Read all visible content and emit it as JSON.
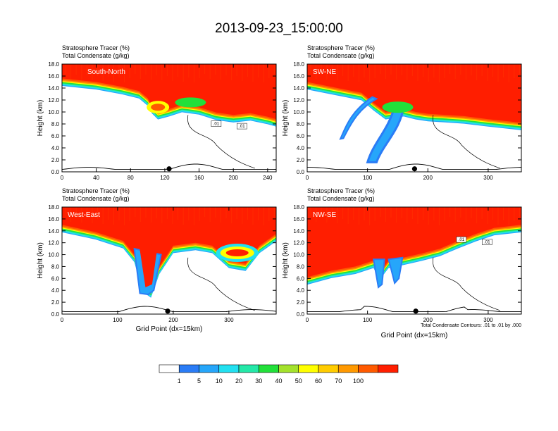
{
  "title": "2013-09-23_15:00:00",
  "chart_data": [
    {
      "type": "heatmap",
      "panel_label": "South-North",
      "field_labels": [
        "Stratosphere Tracer   (%)",
        "Total Condensate   (g/kg)"
      ],
      "ylabel": "Height (km)",
      "xlabel": "",
      "xlim": [
        0,
        250
      ],
      "ylim": [
        0,
        18
      ],
      "x_ticks": [
        0,
        40,
        80,
        120,
        160,
        200,
        240
      ],
      "y_ticks": [
        "0.0",
        "2.0",
        "4.0",
        "6.0",
        "8.0",
        "10.0",
        "12.0",
        "14.0",
        "16.0",
        "18.0"
      ],
      "tracer_boundary_km": [
        [
          0,
          15.6
        ],
        [
          40,
          15.0
        ],
        [
          70,
          14.2
        ],
        [
          90,
          13.5
        ],
        [
          100,
          12.3
        ],
        [
          105,
          11.0
        ],
        [
          112,
          10.0
        ],
        [
          125,
          10.5
        ],
        [
          140,
          11.2
        ],
        [
          160,
          10.8
        ],
        [
          180,
          9.9
        ],
        [
          200,
          9.5
        ],
        [
          220,
          9.8
        ],
        [
          240,
          9.2
        ],
        [
          250,
          8.8
        ]
      ],
      "dot_marker_x": 125,
      "contour_labels": [
        ".01",
        ".01"
      ]
    },
    {
      "type": "heatmap",
      "panel_label": "SW-NE",
      "field_labels": [
        "Stratosphere Tracer   (%)",
        "Total Condensate   (g/kg)"
      ],
      "ylabel": "Height (km)",
      "xlabel": "",
      "xlim": [
        0,
        355
      ],
      "ylim": [
        0,
        18
      ],
      "x_ticks": [
        0,
        100,
        200,
        300
      ],
      "y_ticks": [
        "0.0",
        "2.0",
        "4.0",
        "6.0",
        "8.0",
        "10.0",
        "12.0",
        "14.0",
        "16.0",
        "18.0"
      ],
      "tracer_boundary_km": [
        [
          0,
          15.0
        ],
        [
          50,
          14.0
        ],
        [
          90,
          13.2
        ],
        [
          110,
          11.5
        ],
        [
          130,
          10.0
        ],
        [
          160,
          10.5
        ],
        [
          180,
          10.0
        ],
        [
          200,
          9.7
        ],
        [
          230,
          9.5
        ],
        [
          260,
          9.3
        ],
        [
          300,
          8.8
        ],
        [
          355,
          8.2
        ]
      ],
      "dot_marker_x": 178
    },
    {
      "type": "heatmap",
      "panel_label": "West-East",
      "field_labels": [
        "Stratosphere Tracer   (%)",
        "Total Condensate   (g/kg)"
      ],
      "ylabel": "Height (km)",
      "xlabel": "Grid Point (dx=15km)",
      "xlim": [
        0,
        385
      ],
      "ylim": [
        0,
        18
      ],
      "x_ticks": [
        0,
        100,
        200,
        300
      ],
      "y_ticks": [
        "0.0",
        "2.0",
        "4.0",
        "6.0",
        "8.0",
        "10.0",
        "12.0",
        "14.0",
        "16.0",
        "18.0"
      ],
      "tracer_boundary_km": [
        [
          0,
          15.0
        ],
        [
          60,
          13.8
        ],
        [
          110,
          12.3
        ],
        [
          130,
          10.0
        ],
        [
          145,
          5.0
        ],
        [
          160,
          4.0
        ],
        [
          175,
          8.0
        ],
        [
          200,
          11.5
        ],
        [
          240,
          12.0
        ],
        [
          270,
          11.5
        ],
        [
          300,
          9.0
        ],
        [
          330,
          8.5
        ],
        [
          355,
          11.5
        ],
        [
          385,
          13.5
        ]
      ],
      "dot_marker_x": 190
    },
    {
      "type": "heatmap",
      "panel_label": "NW-SE",
      "field_labels": [
        "Stratosphere Tracer   (%)",
        "Total Condensate   (g/kg)"
      ],
      "ylabel": "Height (km)",
      "xlabel": "Grid Point (dx=15km)",
      "footnote": "Total Condensate Contours: .01 to .01 by .000",
      "xlim": [
        0,
        355
      ],
      "ylim": [
        0,
        18
      ],
      "x_ticks": [
        0,
        100,
        200,
        300
      ],
      "y_ticks": [
        "0.0",
        "2.0",
        "4.0",
        "6.0",
        "8.0",
        "10.0",
        "12.0",
        "14.0",
        "16.0",
        "18.0"
      ],
      "tracer_boundary_km": [
        [
          0,
          6.2
        ],
        [
          40,
          7.3
        ],
        [
          80,
          8.0
        ],
        [
          110,
          9.0
        ],
        [
          120,
          7.0
        ],
        [
          135,
          9.0
        ],
        [
          160,
          9.5
        ],
        [
          190,
          10.2
        ],
        [
          220,
          11.0
        ],
        [
          250,
          12.3
        ],
        [
          280,
          13.5
        ],
        [
          310,
          14.5
        ],
        [
          355,
          15.0
        ]
      ],
      "dot_marker_x": 180,
      "contour_labels": [
        ".01",
        ".01"
      ]
    }
  ],
  "colorbar": {
    "levels": [
      "1",
      "5",
      "10",
      "20",
      "30",
      "40",
      "50",
      "60",
      "70",
      "100"
    ],
    "colors": [
      "#ffffff",
      "#2a7cf6",
      "#26a6fa",
      "#22e0f0",
      "#24e8a8",
      "#22e03a",
      "#a4e22c",
      "#ffff00",
      "#ffcc00",
      "#ff9900",
      "#ff5a00",
      "#ff1e00"
    ]
  }
}
